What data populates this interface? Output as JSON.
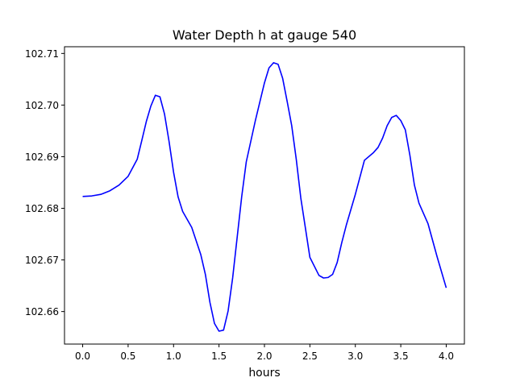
{
  "chart_data": {
    "type": "line",
    "title": "Water Depth h at gauge 540",
    "xlabel": "hours",
    "ylabel": "",
    "xlim": [
      -0.2,
      4.2
    ],
    "ylim": [
      102.6537,
      102.7113
    ],
    "xticks": [
      0.0,
      0.5,
      1.0,
      1.5,
      2.0,
      2.5,
      3.0,
      3.5,
      4.0
    ],
    "xtick_labels": [
      "0.0",
      "0.5",
      "1.0",
      "1.5",
      "2.0",
      "2.5",
      "3.0",
      "3.5",
      "4.0"
    ],
    "yticks": [
      102.66,
      102.67,
      102.68,
      102.69,
      102.7,
      102.71
    ],
    "ytick_labels": [
      "102.66",
      "102.67",
      "102.68",
      "102.69",
      "102.70",
      "102.71"
    ],
    "grid": false,
    "series": [
      {
        "color": "#0000ff",
        "x": [
          0.0,
          0.1,
          0.2,
          0.3,
          0.4,
          0.5,
          0.6,
          0.65,
          0.7,
          0.75,
          0.8,
          0.85,
          0.9,
          0.95,
          1.0,
          1.05,
          1.1,
          1.2,
          1.3,
          1.35,
          1.4,
          1.45,
          1.5,
          1.55,
          1.6,
          1.65,
          1.7,
          1.75,
          1.8,
          1.9,
          2.0,
          2.05,
          2.1,
          2.15,
          2.2,
          2.25,
          2.3,
          2.35,
          2.4,
          2.5,
          2.6,
          2.65,
          2.7,
          2.75,
          2.8,
          2.85,
          2.9,
          3.0,
          3.1,
          3.2,
          3.25,
          3.3,
          3.35,
          3.4,
          3.45,
          3.5,
          3.55,
          3.6,
          3.65,
          3.7,
          3.8,
          3.9,
          4.0
        ],
        "y": [
          102.6823,
          102.6824,
          102.6827,
          102.6834,
          102.6845,
          102.6862,
          102.6895,
          102.6931,
          102.6968,
          102.6998,
          102.7019,
          102.7016,
          102.6983,
          102.693,
          102.687,
          102.6822,
          102.6794,
          102.6763,
          102.671,
          102.6672,
          102.6618,
          102.6577,
          102.6562,
          102.6564,
          102.6601,
          102.6665,
          102.6744,
          102.6823,
          102.689,
          102.697,
          102.7043,
          102.7072,
          102.7082,
          102.7079,
          102.7052,
          102.7007,
          102.696,
          102.6895,
          102.682,
          102.6705,
          102.667,
          102.6665,
          102.6666,
          102.6672,
          102.6695,
          102.6733,
          102.6767,
          102.6827,
          102.6893,
          102.6908,
          102.6918,
          102.6936,
          102.696,
          102.6976,
          102.698,
          102.697,
          102.6952,
          102.6903,
          102.6845,
          102.681,
          102.677,
          102.6706,
          102.6646
        ]
      }
    ]
  }
}
